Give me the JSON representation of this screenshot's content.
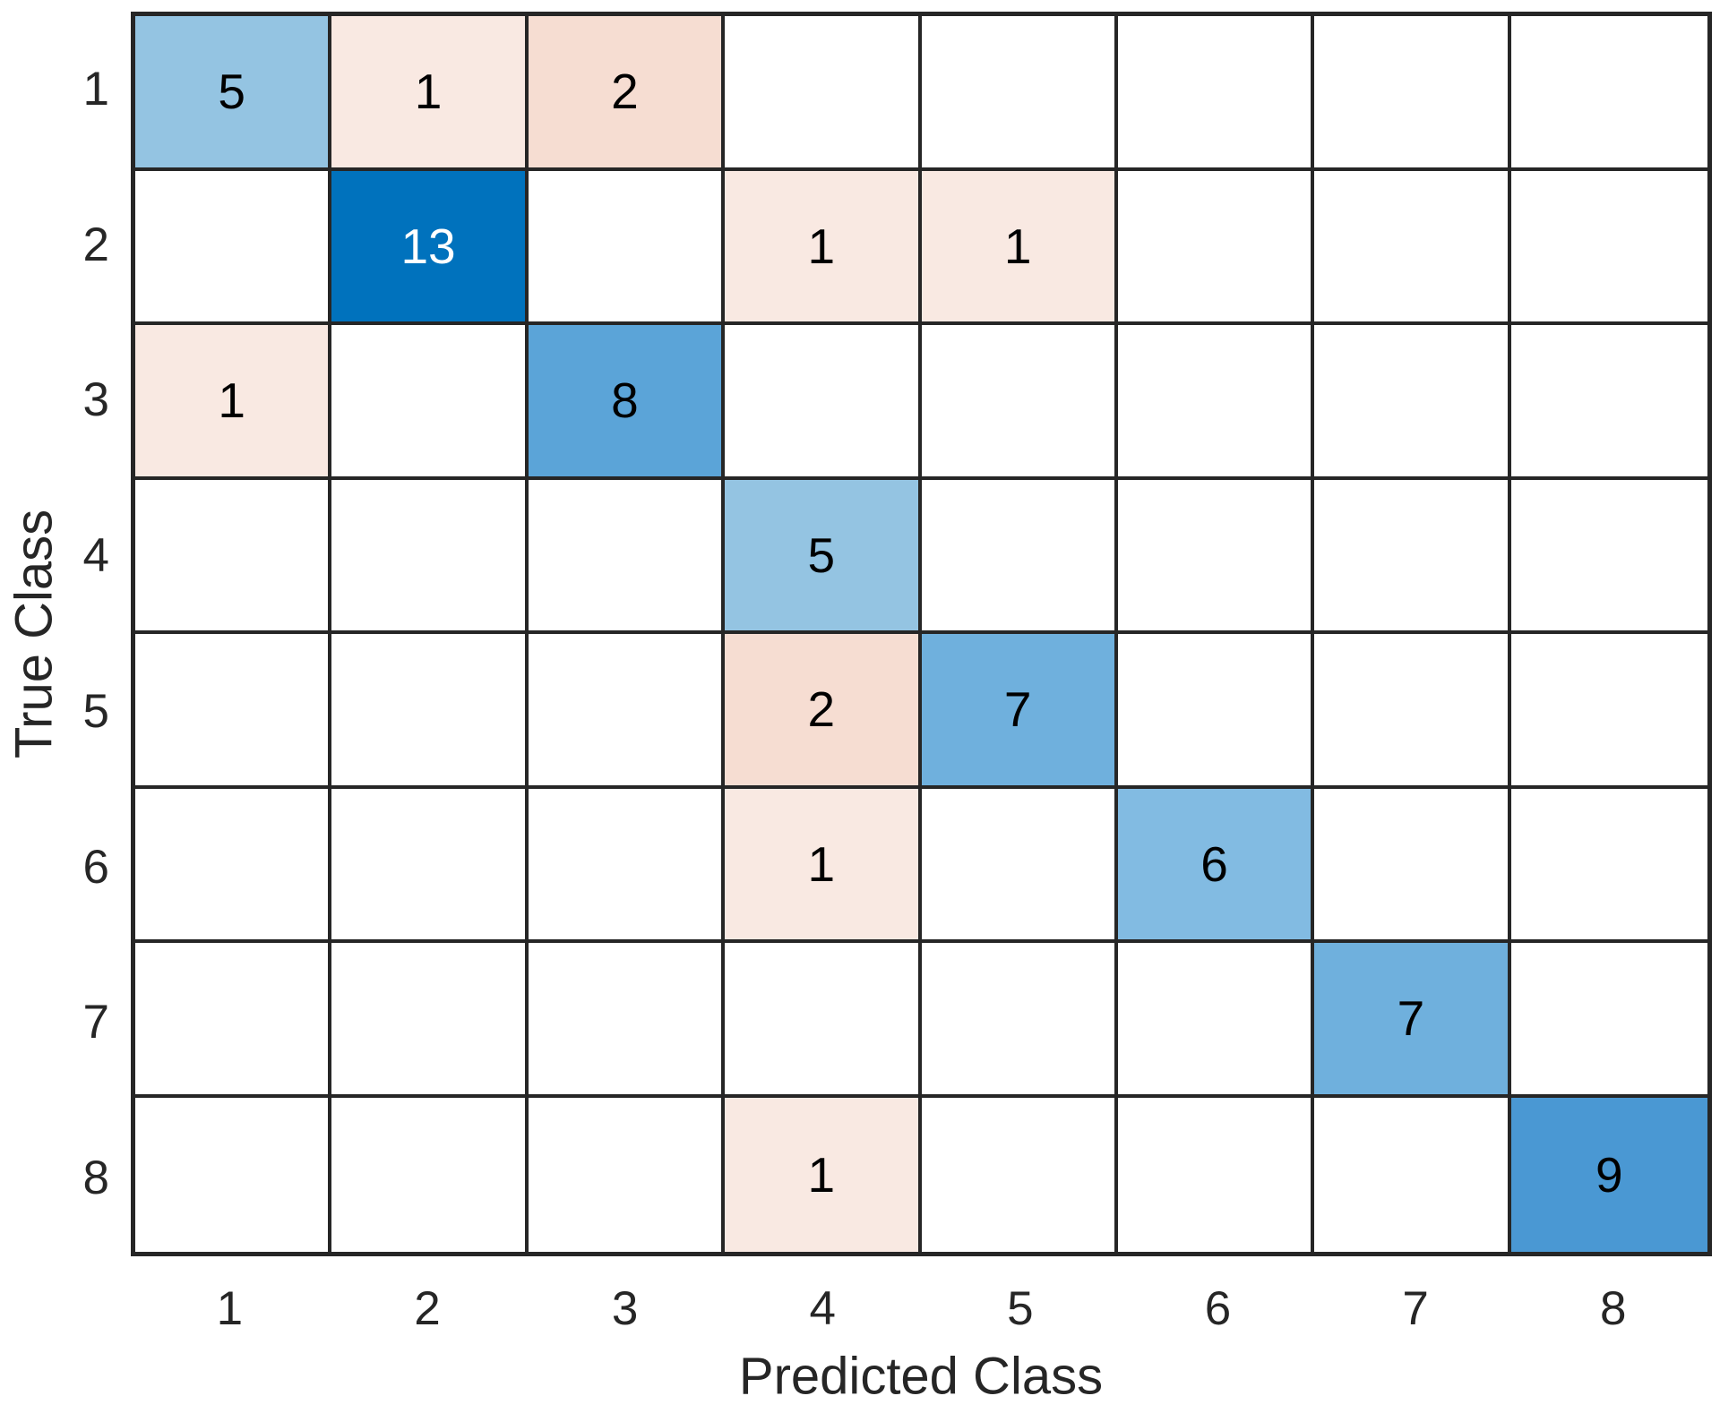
{
  "chart_data": {
    "type": "heatmap",
    "subtype": "confusion-matrix",
    "title": "",
    "xlabel": "Predicted Class",
    "ylabel": "True Class",
    "x_ticks": [
      "1",
      "2",
      "3",
      "4",
      "5",
      "6",
      "7",
      "8"
    ],
    "y_ticks": [
      "1",
      "2",
      "3",
      "4",
      "5",
      "6",
      "7",
      "8"
    ],
    "matrix": [
      [
        5,
        1,
        2,
        0,
        0,
        0,
        0,
        0
      ],
      [
        0,
        13,
        0,
        1,
        1,
        0,
        0,
        0
      ],
      [
        1,
        0,
        8,
        0,
        0,
        0,
        0,
        0
      ],
      [
        0,
        0,
        0,
        5,
        0,
        0,
        0,
        0
      ],
      [
        0,
        0,
        0,
        2,
        7,
        0,
        0,
        0
      ],
      [
        0,
        0,
        0,
        1,
        0,
        6,
        0,
        0
      ],
      [
        0,
        0,
        0,
        0,
        0,
        0,
        7,
        0
      ],
      [
        0,
        0,
        0,
        1,
        0,
        0,
        0,
        9
      ]
    ],
    "max_value": 13,
    "colors": {
      "diagonal_by_value": {
        "5": "#94c4e2",
        "6": "#82bbe2",
        "7": "#6fb0dd",
        "8": "#5ba4d8",
        "9": "#4a98d3",
        "13": "#0072bd"
      },
      "off_diagonal_by_value": {
        "1": "#f9e9e2",
        "2": "#f6ddd2"
      },
      "empty_cell": "#ffffff",
      "grid_line": "#262626",
      "tick_text": "#262626",
      "cell_text_dark": "#000000",
      "cell_text_light": "#ffffff"
    },
    "light_text_values": [
      13
    ],
    "legend": "none",
    "grid": "on"
  }
}
